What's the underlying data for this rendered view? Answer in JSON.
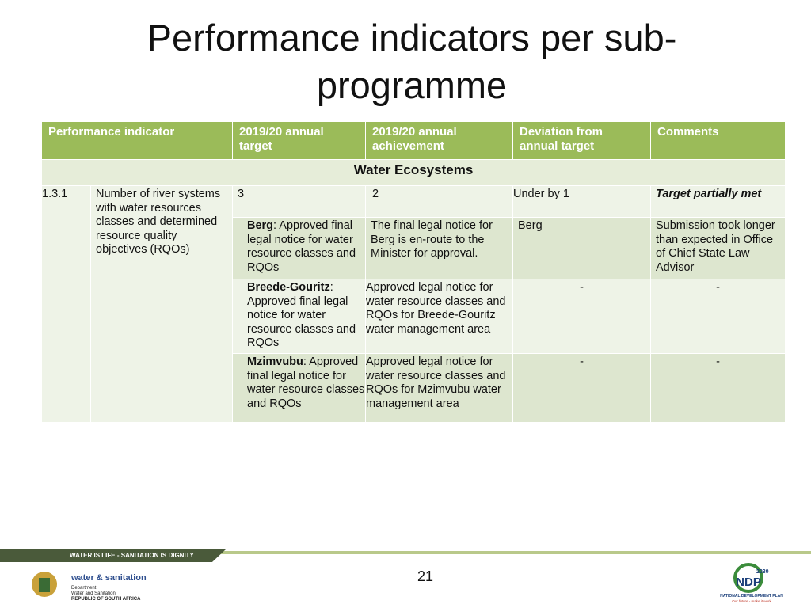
{
  "title": "Performance indicators per sub-programme",
  "table": {
    "headers": [
      "Performance indicator",
      "2019/20 annual target",
      "2019/20 annual achievement",
      "Deviation from annual target",
      "Comments"
    ],
    "section": "Water Ecosystems",
    "indicator": {
      "number": "1.3.1",
      "text": "Number of river systems with water resources classes and determined resource quality objectives (RQOs)"
    },
    "rows": [
      {
        "target": "3",
        "achievement": "2",
        "deviation": "Under by 1",
        "comments": "Target  partially met"
      },
      {
        "target_name": "Berg",
        "target": ": Approved final legal notice for water resource classes and RQOs",
        "achievement": "The final legal notice for Berg is en-route to the Minister for approval.",
        "deviation": "Berg",
        "comments": "Submission took longer than expected in Office of Chief State Law Advisor"
      },
      {
        "target_name": "Breede-Gouritz",
        "target": ": Approved final legal notice for water resource classes and RQOs",
        "achievement": "Approved legal notice for water resource classes and RQOs for Breede-Gouritz water management area",
        "deviation": "-",
        "comments": "-"
      },
      {
        "target_name": "Mzimvubu",
        "target": ": Approved final legal notice for water resource classes and RQOs",
        "achievement": "Approved legal notice for water resource classes and RQOs for Mzimvubu water management area",
        "deviation": "-",
        "comments": "-"
      }
    ]
  },
  "footer": {
    "banner": "WATER IS LIFE - SANITATION IS DIGNITY",
    "dept_name": "water & sanitation",
    "dept_lines": [
      "Department:",
      "Water and Sanitation",
      "REPUBLIC OF SOUTH AFRICA"
    ],
    "page_number": "21",
    "ndp_year": "2030",
    "ndp_abbr": "NDP",
    "ndp_name": "NATIONAL DEVELOPMENT PLAN",
    "ndp_slogan": "Our future - make it work"
  }
}
